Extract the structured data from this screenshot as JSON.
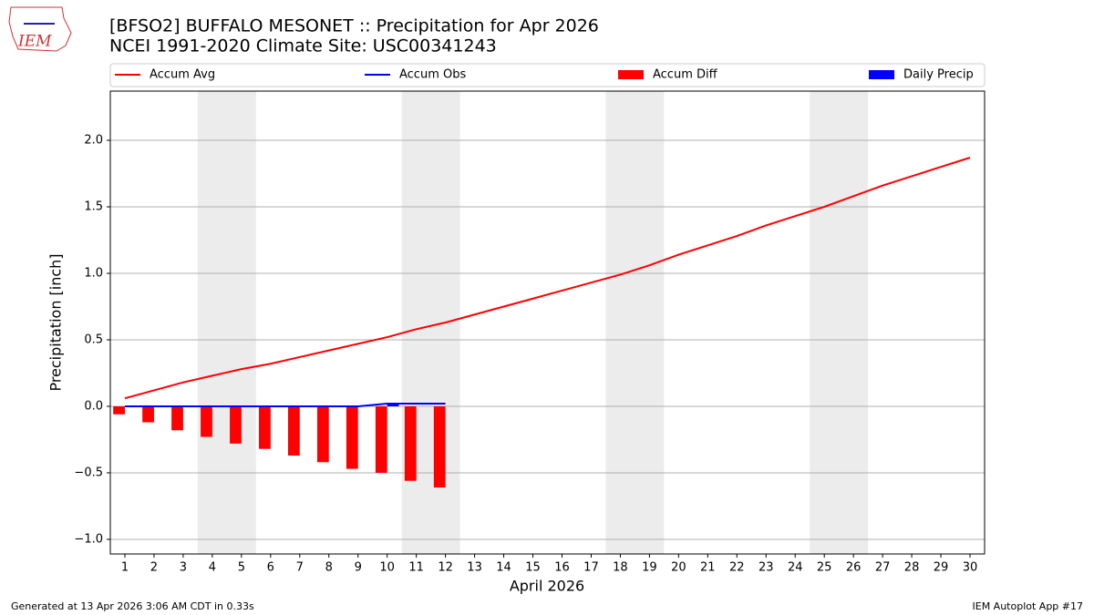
{
  "logo_text": "IEM",
  "chart_data": {
    "type": "precip_accum",
    "title": "[BFSO2] BUFFALO MESONET :: Precipitation for Apr 2026",
    "subtitle": "NCEI 1991-2020 Climate Site: USC00341243",
    "x_label": "April 2026",
    "y_label": "Precipitation [inch]",
    "footer_left": "Generated at 13 Apr 2026 3:06 AM CDT in 0.33s",
    "footer_right": "IEM Autoplot App #17",
    "x": [
      1,
      2,
      3,
      4,
      5,
      6,
      7,
      8,
      9,
      10,
      11,
      12,
      13,
      14,
      15,
      16,
      17,
      18,
      19,
      20,
      21,
      22,
      23,
      24,
      25,
      26,
      27,
      28,
      29,
      30
    ],
    "xlim": [
      0.5,
      30.5
    ],
    "xticks": [
      1,
      2,
      3,
      4,
      5,
      6,
      7,
      8,
      9,
      10,
      11,
      12,
      13,
      14,
      15,
      16,
      17,
      18,
      19,
      20,
      21,
      22,
      23,
      24,
      25,
      26,
      27,
      28,
      29,
      30
    ],
    "ylim": [
      -1.11,
      2.37
    ],
    "yticks": [
      {
        "value": -1.0,
        "label": "−1.0"
      },
      {
        "value": -0.5,
        "label": "−0.5"
      },
      {
        "value": 0.0,
        "label": "0.0"
      },
      {
        "value": 0.5,
        "label": "0.5"
      },
      {
        "value": 1.0,
        "label": "1.0"
      },
      {
        "value": 1.5,
        "label": "1.5"
      },
      {
        "value": 2.0,
        "label": "2.0"
      }
    ],
    "grid": true,
    "shaded_x_ranges": [
      [
        3.5,
        5.5
      ],
      [
        10.5,
        12.5
      ],
      [
        17.5,
        19.5
      ],
      [
        24.5,
        26.5
      ]
    ],
    "series": [
      {
        "name": "Accum Avg",
        "kind": "line",
        "color": "#ff0000",
        "values": [
          0.06,
          0.12,
          0.18,
          0.23,
          0.28,
          0.32,
          0.37,
          0.42,
          0.47,
          0.52,
          0.58,
          0.63,
          0.69,
          0.75,
          0.81,
          0.87,
          0.93,
          0.99,
          1.06,
          1.14,
          1.21,
          1.28,
          1.36,
          1.43,
          1.5,
          1.58,
          1.66,
          1.73,
          1.8,
          1.87
        ]
      },
      {
        "name": "Accum Obs",
        "kind": "line",
        "color": "#0000ff",
        "values": [
          0,
          0,
          0,
          0,
          0,
          0,
          0,
          0,
          0,
          0.02,
          0.02,
          0.02,
          null,
          null,
          null,
          null,
          null,
          null,
          null,
          null,
          null,
          null,
          null,
          null,
          null,
          null,
          null,
          null,
          null,
          null
        ]
      },
      {
        "name": "Accum Diff",
        "kind": "bar",
        "side": "left",
        "color": "#ff0000",
        "values": [
          -0.06,
          -0.12,
          -0.18,
          -0.23,
          -0.28,
          -0.32,
          -0.37,
          -0.42,
          -0.47,
          -0.5,
          -0.56,
          -0.61,
          null,
          null,
          null,
          null,
          null,
          null,
          null,
          null,
          null,
          null,
          null,
          null,
          null,
          null,
          null,
          null,
          null,
          null
        ]
      },
      {
        "name": "Daily Precip",
        "kind": "bar",
        "side": "right",
        "color": "#0000ff",
        "values": [
          0,
          0,
          0,
          0,
          0,
          0,
          0,
          0,
          0,
          0.02,
          0,
          0,
          null,
          null,
          null,
          null,
          null,
          null,
          null,
          null,
          null,
          null,
          null,
          null,
          null,
          null,
          null,
          null,
          null,
          null
        ]
      }
    ]
  }
}
